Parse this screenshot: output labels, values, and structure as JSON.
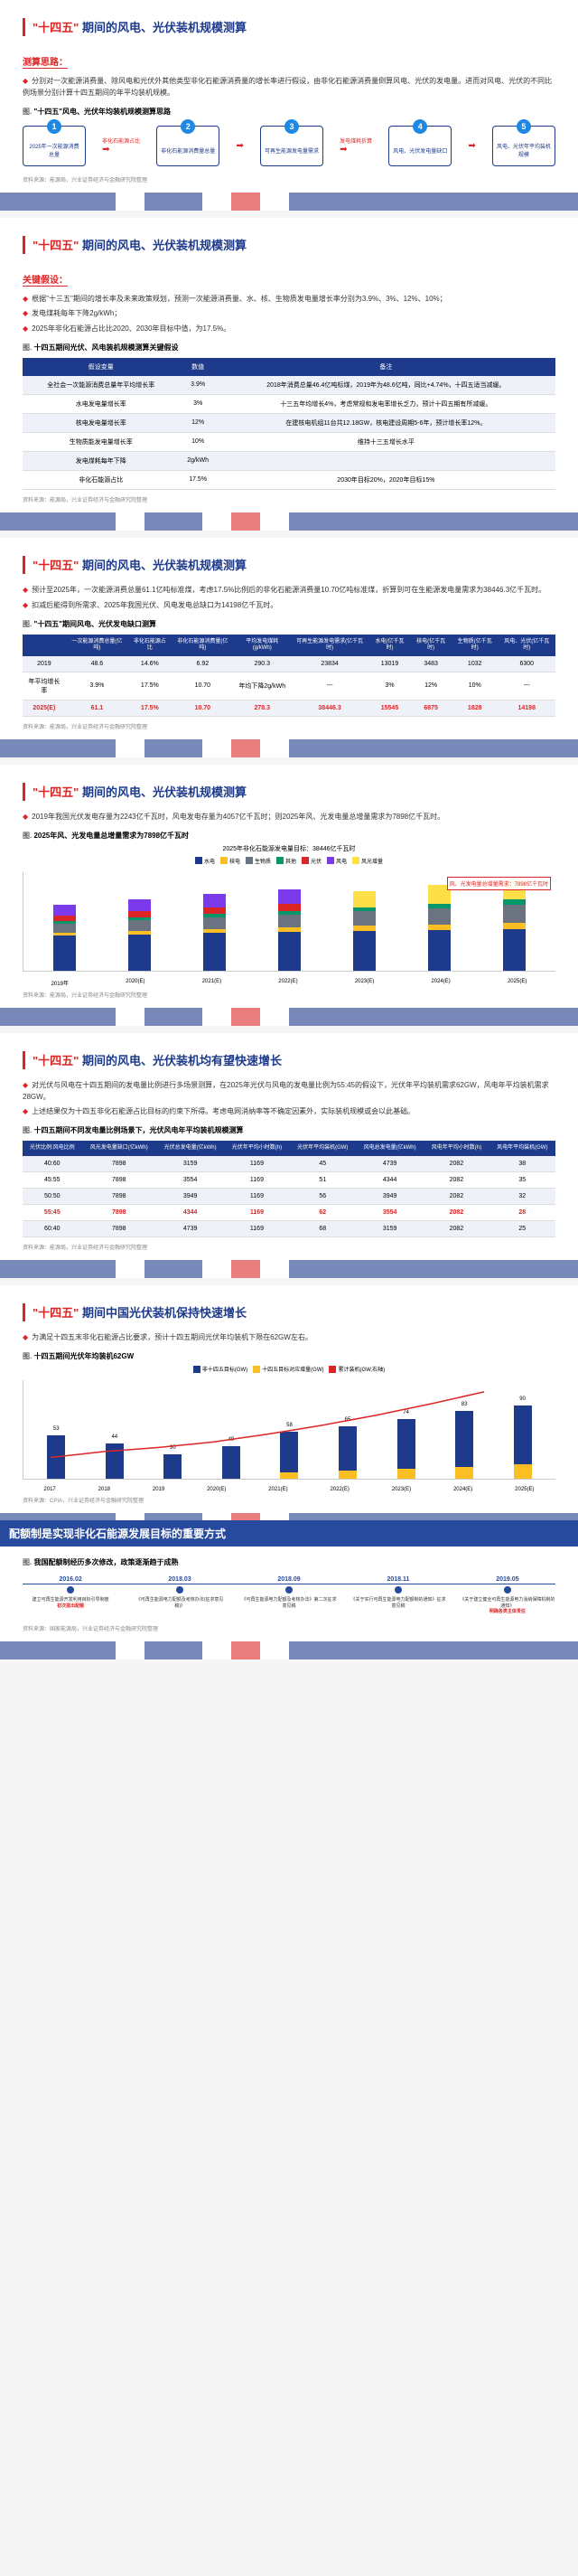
{
  "sections": {
    "s1": {
      "title_red": "\"十四五\"",
      "title_blue": "期间的风电、光伏装机规模测算",
      "sub": "测算思路：",
      "p1": "分别对一次能源消费量、除风电和光伏外其他类型非化石能源消费量的增长率进行假设，由非化石能源消费量倒算风电、光伏的发电量。进而对风电、光伏的不同比例场景分别计算十四五期间的年平均装机规模。",
      "chart_title": "\"十四五\"风电、光伏年均装机规模测算思路",
      "flow": [
        "2025年一次能源消费总量",
        "非化石能源消费量总量",
        "可再生能源发电量需求",
        "风电、光伏发电量缺口",
        "风电、光伏年平均装机规模"
      ],
      "flow_labels": [
        "非化石能源占比",
        "",
        "发电煤耗折算",
        "",
        ""
      ],
      "source": "资料来源：能源局，兴业证券经济与金融研究院整理"
    },
    "s2": {
      "sub": "关键假设：",
      "p1": "根据\"十三五\"期间的增长率及未来政策规划，预测一次能源消费量、水、核、生物质发电量增长率分别为3.9%、3%、12%、10%；",
      "p2": "发电煤耗每年下降2g/kWh；",
      "p3": "2025年非化石能源占比比2020、2030年目标中值，为17.5%。",
      "chart_title": "十四五期间光伏、风电装机规模测算关键假设",
      "table": {
        "headers": [
          "假设变量",
          "数值",
          "备注"
        ],
        "rows": [
          [
            "全社会一次能源消费总量年平均增长率",
            "3.9%",
            "2018年消费总量46.4亿吨标煤，2019年为48.6亿吨，同比+4.74%，十四五适当减缓。"
          ],
          [
            "水电发电量增长率",
            "3%",
            "十三五年均增长4%，考虑常规和发电率增长乏力，预计十四五期有所减缓。"
          ],
          [
            "核电发电量增长率",
            "12%",
            "在建核电机组11台共12.18GW，核电建设周期5-6年，预计增长率12%。"
          ],
          [
            "生物质能发电量增长率",
            "10%",
            "维持十三五增长水平"
          ],
          [
            "发电煤耗每年下降",
            "2g/kWh",
            ""
          ],
          [
            "非化石能源占比",
            "17.5%",
            "2030年目标20%，2020年目标15%"
          ]
        ]
      }
    },
    "s3": {
      "p1": "预计至2025年，一次能源消费总量61.1亿吨标准煤，考虑17.5%比例后的非化石能源消费量10.70亿吨标准煤，折算到可在生能源发电量需求为38446.3亿千瓦时。",
      "p2": "扣减后能得到所需求、2025年我国光伏、风电发电总缺口为14198亿千瓦时。",
      "chart_title": "\"十四五\"期间风电、光伏发电缺口测算",
      "t2": {
        "headers": [
          "",
          "一次能源消费总量(亿吨)",
          "非化石能源占比",
          "非化石能源消费量(亿吨)",
          "平均发电煤耗(g/kWh)",
          "可再生能源发电需求(亿千瓦时)",
          "水电(亿千瓦时)",
          "核电(亿千瓦时)",
          "生物质(亿千瓦时)",
          "风电、光伏(亿千瓦时)"
        ],
        "rows": [
          [
            "2019",
            "48.6",
            "14.6%",
            "6.92",
            "290.3",
            "23834",
            "13019",
            "3483",
            "1032",
            "6300"
          ],
          [
            "年平均增长率",
            "3.9%",
            "17.5%",
            "10.70",
            "年均下降2g/kWh",
            "---",
            "3%",
            "12%",
            "10%",
            "---"
          ],
          [
            "2025(E)",
            "61.1",
            "17.5%",
            "10.70",
            "278.3",
            "38446.3",
            "15545",
            "6875",
            "1828",
            "14198"
          ]
        ]
      }
    },
    "s4": {
      "p1": "2019年我国光伏发电存量为2243亿千瓦时，风电发电存量为4057亿千瓦时；则2025年风、光发电量总增量需求为7898亿千瓦时。",
      "chart_title": "2025年风、光发电量总增量需求为7898亿千瓦时",
      "annot": "风、光发电量总增量需求：7898亿千瓦时",
      "legend": [
        "水电",
        "核电",
        "生物质",
        "其他",
        "光伏",
        "风电",
        "风光增量"
      ],
      "colors": [
        "#1e3a8a",
        "#fbbf24",
        "#6b7280",
        "#059669",
        "#dc2626",
        "#7c3aed",
        "#fde047"
      ],
      "years": [
        "2019年",
        "2020(E)",
        "2021(E)",
        "2022(E)",
        "2023(E)",
        "2024(E)",
        "2025(E)"
      ],
      "stacks": [
        [
          55,
          5,
          14,
          4,
          9,
          17,
          0
        ],
        [
          57,
          6,
          16,
          5,
          10,
          19,
          0
        ],
        [
          59,
          7,
          18,
          5,
          11,
          21,
          0
        ],
        [
          61,
          7,
          20,
          6,
          12,
          23,
          0
        ],
        [
          63,
          8,
          23,
          6,
          0,
          0,
          25
        ],
        [
          64,
          9,
          25,
          7,
          0,
          0,
          30
        ],
        [
          66,
          10,
          28,
          8,
          0,
          0,
          33
        ]
      ]
    },
    "s5": {
      "title_blue2": "期间的风电、光伏装机均有望快速增长",
      "p1": "对光伏与风电在十四五期间的发电量比例进行多场景测算，在2025年光伏与风电的发电量比例为55:45的假设下，光伏年平均装机需求62GW，风电年平均装机需求28GW。",
      "p2": "上述结果仅为十四五非化石能源占比目标的约束下所得。考虑电网消纳率等不确定因素外，实际装机规模或会以此基础。",
      "chart_title": "十四五期间不同发电量比例场景下，光伏风电年平均装机规模测算",
      "t3": {
        "headers": [
          "光伏比例:风电比例",
          "风光发电量缺口(亿kWh)",
          "光伏总发电量(亿kWh)",
          "光伏年平均小时数(h)",
          "光伏年平均装机(GW)",
          "风电总发电量(亿kWh)",
          "风电年平均小时数(h)",
          "风电年平均装机(GW)"
        ],
        "rows": [
          [
            "40:60",
            "7898",
            "3159",
            "1169",
            "45",
            "4739",
            "2082",
            "38"
          ],
          [
            "45:55",
            "7898",
            "3554",
            "1169",
            "51",
            "4344",
            "2082",
            "35"
          ],
          [
            "50:50",
            "7898",
            "3949",
            "1169",
            "56",
            "3949",
            "2082",
            "32"
          ],
          [
            "55:45",
            "7898",
            "4344",
            "1169",
            "62",
            "3554",
            "2082",
            "28"
          ],
          [
            "60:40",
            "7898",
            "4739",
            "1169",
            "68",
            "3159",
            "2082",
            "25"
          ]
        ],
        "highlight_row": 3
      }
    },
    "s6": {
      "title_blue3": "期间中国光伏装机保持快速增长",
      "p1": "为满足十四五末非化石能源占比要求，预计十四五期间光伏年均装机下限在62GW左右。",
      "chart_title": "十四五期间光伏年均装机62GW",
      "legend": [
        "非十四五目标(GW)",
        "十四五目标对应增量(GW)",
        "累计装机(GW,右轴)"
      ],
      "colors2": [
        "#1e3a8a",
        "#fbbf24",
        "#dc2626"
      ],
      "years": [
        "2017",
        "2018",
        "2019",
        "2020(E)",
        "2021(E)",
        "2022(E)",
        "2023(E)",
        "2024(E)",
        "2025(E)"
      ],
      "base": [
        53,
        44,
        30,
        40,
        50,
        55,
        62,
        68,
        72
      ],
      "incr": [
        0,
        0,
        0,
        0,
        8,
        10,
        12,
        15,
        18
      ],
      "cum": [
        130,
        174,
        204,
        244,
        302,
        367,
        441,
        524,
        614
      ]
    },
    "s7": {
      "header": "配额制是实现非化石能源发展目标的重要方式",
      "chart_title": "我国配额制经历多次修改，政策逐渐趋于成熟",
      "timeline": [
        {
          "date": "2016.02",
          "text": "建立可再生能源开发利用目标引导制度",
          "hl": "初次提出配额"
        },
        {
          "date": "2018.03",
          "text": "《可再生能源电力配额及考核办法(征求意见稿)》",
          "hl": ""
        },
        {
          "date": "2018.09",
          "text": "《可再生能源电力配额及考核办法》第二次征求意见稿",
          "hl": ""
        },
        {
          "date": "2018.11",
          "text": "《关于实行可再生能源电力配额制的通知》征求意见稿",
          "hl": ""
        },
        {
          "date": "2019.05",
          "text": "《关于建立健全可再生能源电力消纳保障机制的通知》",
          "hl": "明确各类主体责任"
        }
      ],
      "source": "资料来源：国家能源局，兴业证券经济与金融研究院整理"
    }
  }
}
